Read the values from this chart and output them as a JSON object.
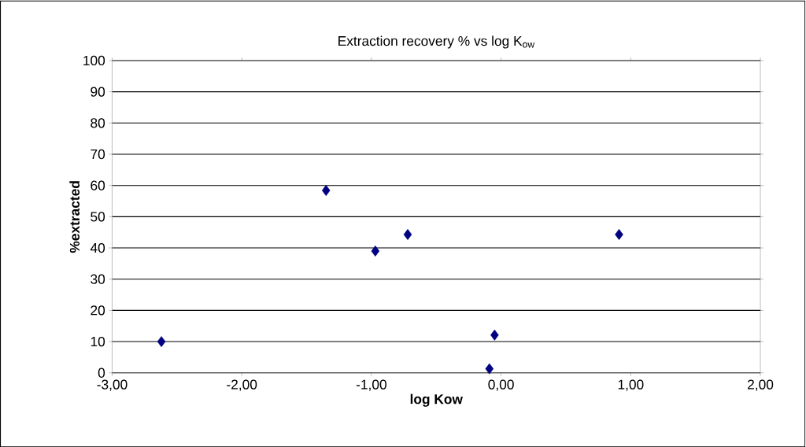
{
  "chart_data": {
    "type": "scatter",
    "title": "Extraction recovery % vs log K$_{ow}$",
    "xlabel": "log Kow",
    "ylabel": "%extracted",
    "x": [
      -2.62,
      -1.35,
      -0.97,
      -0.72,
      -0.05,
      -0.09,
      0.91
    ],
    "values": [
      10,
      58.4,
      39,
      44.3,
      12.1,
      1.3,
      44.3
    ],
    "color": "#000080",
    "marker": "diamond",
    "grid": "y",
    "xlim": [
      -3,
      2
    ],
    "ylim": [
      0,
      100
    ],
    "xticks": [
      {
        "value": -3,
        "label": "-3,00"
      },
      {
        "value": -2,
        "label": "-2,00"
      },
      {
        "value": -1,
        "label": "-1,00"
      },
      {
        "value": 0,
        "label": "0,00"
      },
      {
        "value": 1,
        "label": "1,00"
      },
      {
        "value": 2,
        "label": "2,00"
      }
    ],
    "yticks": [
      0,
      10,
      20,
      30,
      40,
      50,
      60,
      70,
      80,
      90,
      100
    ]
  }
}
